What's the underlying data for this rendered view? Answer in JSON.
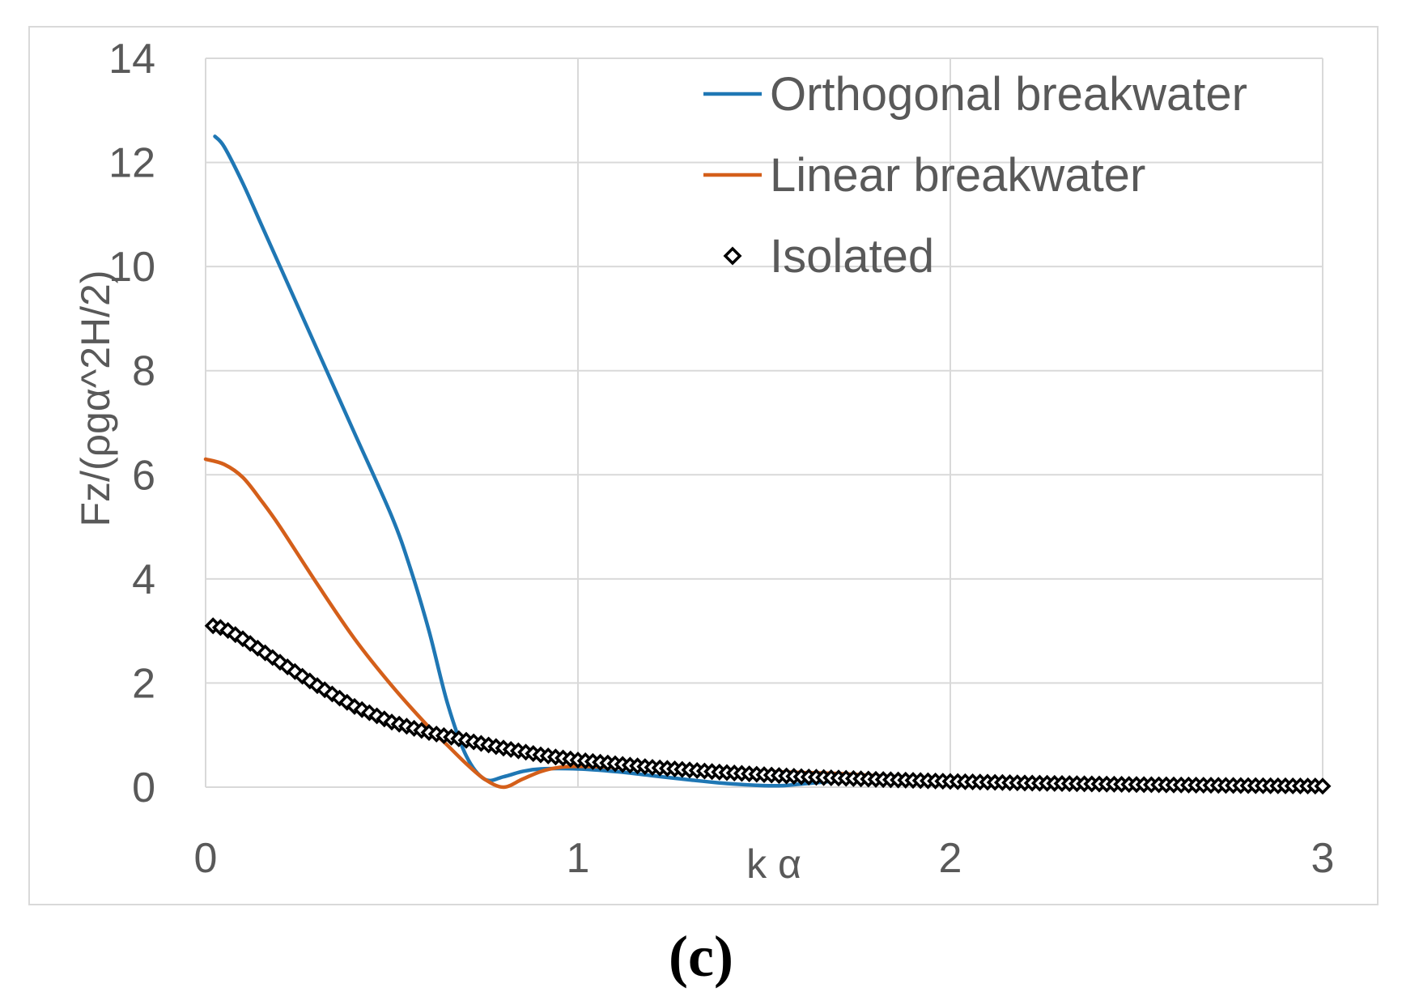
{
  "chart_data": {
    "type": "line",
    "title": "",
    "xlabel": "k α",
    "ylabel": "Fz/(ρgα^2H/2)",
    "xlim": [
      0,
      3
    ],
    "ylim": [
      0,
      14
    ],
    "x_ticks": [
      "0",
      "1",
      "2",
      "3"
    ],
    "y_ticks": [
      "0",
      "2",
      "4",
      "6",
      "8",
      "10",
      "12",
      "14"
    ],
    "grid": true,
    "legend_position": "top-right",
    "series": [
      {
        "name": "Orthogonal breakwater",
        "style": "line",
        "color": "#1f77b4",
        "points": [
          [
            0.025,
            12.5
          ],
          [
            0.05,
            12.3
          ],
          [
            0.1,
            11.6
          ],
          [
            0.15,
            10.8
          ],
          [
            0.2,
            10.0
          ],
          [
            0.3,
            8.4
          ],
          [
            0.4,
            6.8
          ],
          [
            0.5,
            5.2
          ],
          [
            0.55,
            4.2
          ],
          [
            0.6,
            3.0
          ],
          [
            0.65,
            1.6
          ],
          [
            0.7,
            0.6
          ],
          [
            0.75,
            0.15
          ],
          [
            0.8,
            0.2
          ],
          [
            0.85,
            0.3
          ],
          [
            0.9,
            0.35
          ],
          [
            1.0,
            0.35
          ],
          [
            1.1,
            0.3
          ],
          [
            1.2,
            0.22
          ],
          [
            1.3,
            0.14
          ],
          [
            1.4,
            0.07
          ],
          [
            1.5,
            0.03
          ],
          [
            1.55,
            0.03
          ],
          [
            1.6,
            0.06
          ],
          [
            1.7,
            0.12
          ],
          [
            1.8,
            0.14
          ],
          [
            1.9,
            0.13
          ],
          [
            2.0,
            0.12
          ],
          [
            2.2,
            0.1
          ],
          [
            2.4,
            0.07
          ],
          [
            2.6,
            0.05
          ],
          [
            2.8,
            0.04
          ],
          [
            3.0,
            0.03
          ]
        ]
      },
      {
        "name": "Linear breakwater",
        "style": "line",
        "color": "#d45f1a",
        "points": [
          [
            0.0,
            6.3
          ],
          [
            0.05,
            6.2
          ],
          [
            0.1,
            5.95
          ],
          [
            0.15,
            5.5
          ],
          [
            0.2,
            5.0
          ],
          [
            0.3,
            3.9
          ],
          [
            0.4,
            2.85
          ],
          [
            0.5,
            1.95
          ],
          [
            0.6,
            1.15
          ],
          [
            0.65,
            0.8
          ],
          [
            0.7,
            0.45
          ],
          [
            0.75,
            0.15
          ],
          [
            0.8,
            0.0
          ],
          [
            0.85,
            0.15
          ],
          [
            0.9,
            0.3
          ],
          [
            0.95,
            0.38
          ],
          [
            1.0,
            0.4
          ],
          [
            1.1,
            0.38
          ],
          [
            1.2,
            0.34
          ],
          [
            1.3,
            0.32
          ],
          [
            1.4,
            0.3
          ],
          [
            1.5,
            0.3
          ],
          [
            1.6,
            0.28
          ],
          [
            1.7,
            0.26
          ],
          [
            1.8,
            0.22
          ],
          [
            1.9,
            0.18
          ],
          [
            2.0,
            0.14
          ],
          [
            2.2,
            0.1
          ],
          [
            2.4,
            0.07
          ],
          [
            2.6,
            0.05
          ],
          [
            2.8,
            0.04
          ],
          [
            3.0,
            0.03
          ]
        ]
      },
      {
        "name": "Isolated",
        "style": "markers",
        "marker": "diamond-open",
        "color": "#000000",
        "anchors": [
          [
            0.02,
            3.1
          ],
          [
            0.05,
            3.05
          ],
          [
            0.1,
            2.85
          ],
          [
            0.2,
            2.4
          ],
          [
            0.3,
            1.95
          ],
          [
            0.4,
            1.55
          ],
          [
            0.5,
            1.25
          ],
          [
            0.6,
            1.05
          ],
          [
            0.7,
            0.9
          ],
          [
            0.8,
            0.75
          ],
          [
            0.9,
            0.62
          ],
          [
            1.0,
            0.52
          ],
          [
            1.2,
            0.38
          ],
          [
            1.4,
            0.28
          ],
          [
            1.6,
            0.2
          ],
          [
            1.8,
            0.15
          ],
          [
            2.0,
            0.11
          ],
          [
            2.2,
            0.08
          ],
          [
            2.5,
            0.05
          ],
          [
            2.8,
            0.03
          ],
          [
            3.0,
            0.02
          ]
        ],
        "x_start": 0.02,
        "x_end": 3.0,
        "x_step": 0.02
      }
    ]
  },
  "panel_label": "(c)"
}
